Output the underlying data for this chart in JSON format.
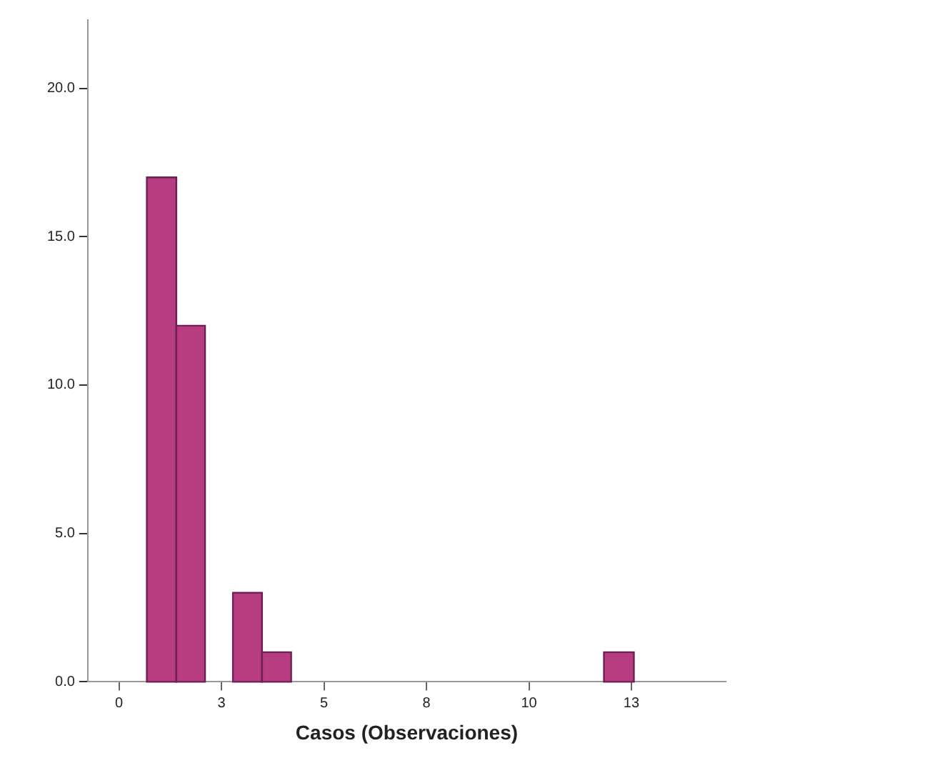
{
  "chart_data": {
    "type": "histogram",
    "xlabel": "Casos (Observaciones)",
    "bins": [
      0.68,
      1.4,
      2.1,
      2.78,
      3.49,
      4.2,
      11.83,
      12.56
    ],
    "values": [
      17,
      12,
      0,
      3,
      1,
      0,
      1
    ],
    "color": "#b83c80",
    "xlim": [
      -0.76,
      14.8
    ],
    "xticks": [
      0,
      {
        "value": 2.5,
        "label": "3"
      },
      5,
      {
        "value": 7.5,
        "label": "8"
      },
      10,
      {
        "value": 12.5,
        "label": "13"
      }
    ],
    "ylim": [
      0,
      22.3
    ],
    "yticks": [
      {
        "value": 0,
        "label": "0.0"
      },
      {
        "value": 5,
        "label": "5.0"
      },
      {
        "value": 10,
        "label": "10.0"
      },
      {
        "value": 15,
        "label": "15.0"
      },
      {
        "value": 20,
        "label": "20.0"
      }
    ],
    "grid": false,
    "legend": false
  }
}
